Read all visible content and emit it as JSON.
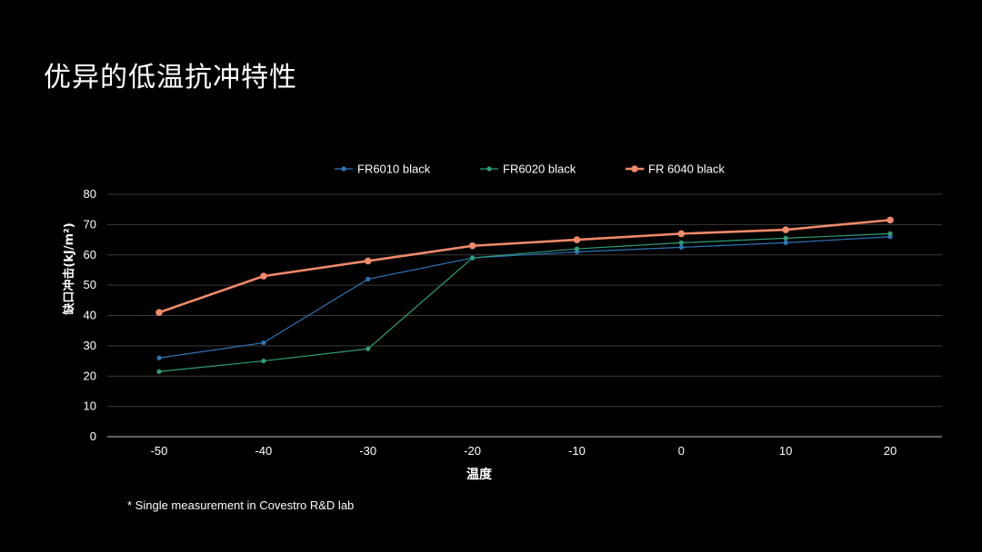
{
  "slide": {
    "title": "优异的低温抗冲特性",
    "footnote": "* Single measurement in Covestro R&D lab"
  },
  "colors": {
    "background": "#000000",
    "text": "#ffffff",
    "gridline": "#3a3a3a",
    "axis": "#bfbfbf"
  },
  "chart_data": {
    "type": "line",
    "title": "",
    "xlabel": "温度",
    "ylabel": "缺口冲击(kJ/m²)",
    "x": [
      -50,
      -40,
      -30,
      -20,
      -10,
      0,
      10,
      20
    ],
    "x_tick_labels": [
      "-50",
      "-40",
      "-30",
      "-20",
      "-10",
      "0",
      "10",
      "20"
    ],
    "ylim": [
      0,
      80
    ],
    "y_ticks": [
      0,
      10,
      20,
      30,
      40,
      50,
      60,
      70,
      80
    ],
    "grid": true,
    "legend_position": "top-center",
    "series": [
      {
        "name": "FR6010 black",
        "color": "#2e75b6",
        "values": [
          26,
          31,
          52,
          59,
          61,
          62.5,
          64,
          66
        ]
      },
      {
        "name": "FR6020 black",
        "color": "#2e9e7a",
        "values": [
          21.5,
          25,
          29,
          59,
          62,
          64,
          65.5,
          67
        ]
      },
      {
        "name": "FR 6040 black",
        "color": "#f08a6a",
        "values": [
          41,
          53,
          58,
          63,
          65,
          67,
          68.3,
          71.5
        ]
      }
    ]
  }
}
